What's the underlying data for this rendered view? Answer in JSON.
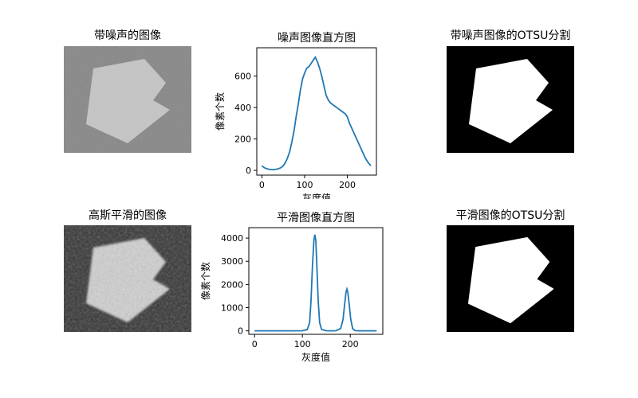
{
  "panels": {
    "noisy_image_title": "带噪声的图像",
    "noisy_otsu_title": "带噪声图像的OTSU分割",
    "smooth_image_title": "高斯平滑的图像",
    "smooth_otsu_title": "平滑图像的OTSU分割"
  },
  "colors": {
    "line": "#1f77b4",
    "noisy_bg": "#7a7a7a",
    "noisy_shape": "#c8c8c8",
    "smooth_bg": "#333333",
    "smooth_shape": "#cfcfcf"
  },
  "chart_data": [
    {
      "type": "line",
      "title": "噪声图像直方图",
      "xlabel": "灰度值",
      "ylabel": "像素个数",
      "xlim": [
        -12,
        268
      ],
      "ylim": [
        -30,
        780
      ],
      "xticks": [
        0,
        100,
        200
      ],
      "yticks": [
        0,
        200,
        400,
        600
      ],
      "x": [
        0,
        5,
        10,
        15,
        20,
        25,
        30,
        35,
        40,
        45,
        50,
        55,
        60,
        65,
        70,
        75,
        80,
        85,
        90,
        95,
        100,
        105,
        110,
        115,
        120,
        125,
        130,
        135,
        140,
        145,
        150,
        155,
        160,
        165,
        170,
        175,
        180,
        185,
        190,
        195,
        200,
        205,
        210,
        215,
        220,
        225,
        230,
        235,
        240,
        245,
        250,
        255
      ],
      "series": [
        {
          "values": [
            30,
            18,
            12,
            8,
            6,
            5,
            6,
            8,
            12,
            18,
            30,
            50,
            80,
            120,
            180,
            250,
            340,
            420,
            510,
            580,
            620,
            650,
            660,
            680,
            700,
            720,
            690,
            650,
            600,
            540,
            480,
            450,
            430,
            420,
            410,
            400,
            390,
            380,
            370,
            360,
            340,
            300,
            270,
            240,
            210,
            180,
            150,
            120,
            90,
            65,
            45,
            30
          ]
        }
      ]
    },
    {
      "type": "line",
      "title": "平滑图像直方图",
      "xlabel": "灰度值",
      "ylabel": "像素个数",
      "xlim": [
        -12,
        268
      ],
      "ylim": [
        -150,
        4450
      ],
      "xticks": [
        0,
        100,
        200
      ],
      "yticks": [
        0,
        1000,
        2000,
        3000,
        4000
      ],
      "x": [
        0,
        20,
        40,
        60,
        80,
        100,
        110,
        115,
        118,
        121,
        124,
        126,
        128,
        130,
        133,
        136,
        140,
        150,
        160,
        170,
        180,
        185,
        188,
        191,
        193,
        195,
        198,
        201,
        205,
        210,
        220,
        240,
        255
      ],
      "series": [
        {
          "values": [
            0,
            0,
            0,
            0,
            0,
            5,
            50,
            350,
            1300,
            2800,
            3900,
            4150,
            3900,
            2900,
            1300,
            350,
            60,
            5,
            0,
            5,
            100,
            500,
            1100,
            1650,
            1800,
            1650,
            1100,
            500,
            100,
            10,
            0,
            0,
            0
          ]
        }
      ]
    }
  ]
}
